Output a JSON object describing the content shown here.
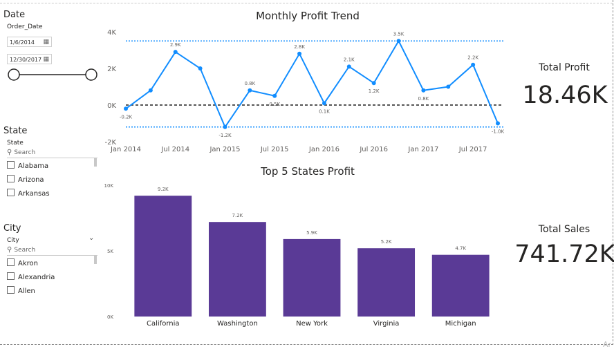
{
  "filters": {
    "date": {
      "title": "Date",
      "field": "Order_Date",
      "start": "1/6/2014",
      "end": "12/30/2017",
      "slider_start": 0,
      "slider_end": 1
    },
    "state": {
      "title": "State",
      "field": "State",
      "search_placeholder": "Search",
      "items": [
        "Alabama",
        "Arizona",
        "Arkansas"
      ]
    },
    "city": {
      "title": "City",
      "field": "City",
      "search_placeholder": "Search",
      "items": [
        "Akron",
        "Alexandria",
        "Allen"
      ]
    }
  },
  "line_chart": {
    "title": "Monthly Profit Trend",
    "chart_data": {
      "type": "line",
      "title": "Monthly Profit Trend",
      "x_tick_labels": [
        "Jan 2014",
        "Jul 2014",
        "Jan 2015",
        "Jul 2015",
        "Jan 2016",
        "Jul 2016",
        "Jan 2017",
        "Jul 2017"
      ],
      "y_tick_labels": [
        "4K",
        "2K",
        "0K",
        "-2K"
      ],
      "ylim": [
        -2000,
        4000
      ],
      "color": "#118DFF",
      "points": [
        {
          "x": "2014-01",
          "y": -200,
          "label": "-0.2K"
        },
        {
          "x": "2014-04",
          "y": 800,
          "label": ""
        },
        {
          "x": "2014-07",
          "y": 2900,
          "label": "2.9K"
        },
        {
          "x": "2014-10",
          "y": 2000,
          "label": ""
        },
        {
          "x": "2015-01",
          "y": -1200,
          "label": "-1.2K"
        },
        {
          "x": "2015-04",
          "y": 800,
          "label": "0.8K"
        },
        {
          "x": "2015-07",
          "y": 500,
          "label": "0.5K"
        },
        {
          "x": "2015-10",
          "y": 2800,
          "label": "2.8K"
        },
        {
          "x": "2016-01",
          "y": 100,
          "label": "0.1K"
        },
        {
          "x": "2016-04",
          "y": 2100,
          "label": "2.1K"
        },
        {
          "x": "2016-07",
          "y": 1200,
          "label": "1.2K"
        },
        {
          "x": "2016-10",
          "y": 3500,
          "label": "3.5K"
        },
        {
          "x": "2017-01",
          "y": 800,
          "label": "0.8K"
        },
        {
          "x": "2017-04",
          "y": 1000,
          "label": ""
        },
        {
          "x": "2017-07",
          "y": 2200,
          "label": "2.2K"
        },
        {
          "x": "2017-10",
          "y": -1000,
          "label": "-1.0K"
        }
      ],
      "reference_lines": [
        {
          "y": 3500,
          "color": "#118DFF",
          "style": "dotted"
        },
        {
          "y": 0,
          "color": "#555555",
          "style": "dashed"
        },
        {
          "y": -1200,
          "color": "#118DFF",
          "style": "dotted"
        }
      ],
      "grid": false
    }
  },
  "bar_chart": {
    "title": "Top 5 States Profit",
    "chart_data": {
      "type": "bar",
      "title": "Top 5 States Profit",
      "categories": [
        "California",
        "Washington",
        "New York",
        "Virginia",
        "Michigan"
      ],
      "values": [
        9200,
        7200,
        5900,
        5200,
        4700
      ],
      "data_labels": [
        "9.2K",
        "7.2K",
        "5.9K",
        "5.2K",
        "4.7K"
      ],
      "y_tick_labels": [
        "10K",
        "5K",
        "0K"
      ],
      "ylim": [
        0,
        10000
      ],
      "color": "#5A3A96",
      "grid": false
    }
  },
  "kpis": {
    "profit": {
      "label": "Total Profit",
      "value": "18.46K"
    },
    "sales": {
      "label": "Total Sales",
      "value": "741.72K"
    }
  },
  "watermark": "Ar"
}
